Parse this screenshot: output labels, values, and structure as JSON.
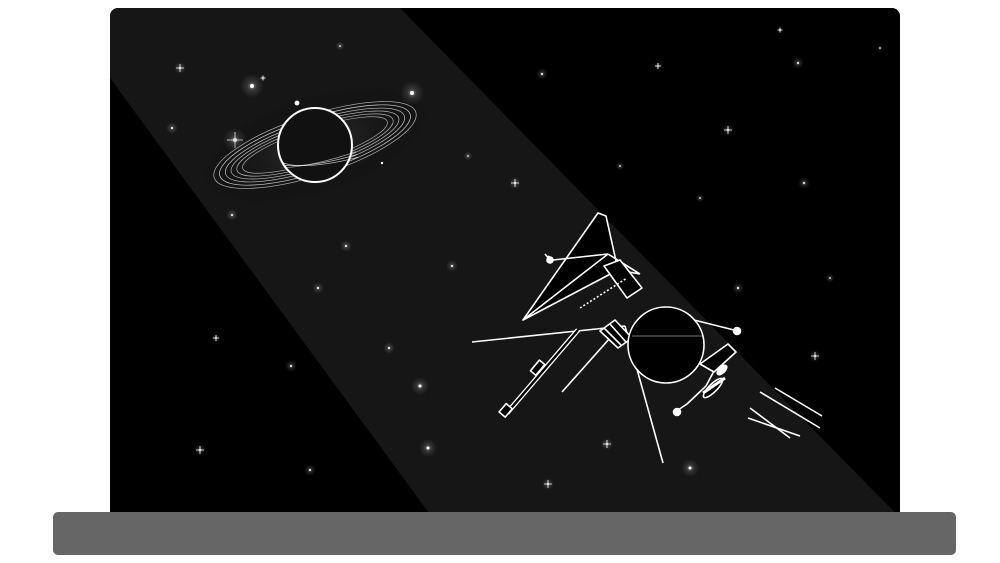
{
  "illustration": {
    "subject_icons": [
      "saturn-planet-icon",
      "space-probe-icon"
    ],
    "colors": {
      "page_background": "#ffffff",
      "space": "#000000",
      "light_beam": "#161616",
      "line_art": "#ffffff",
      "stand": "#666666"
    }
  }
}
